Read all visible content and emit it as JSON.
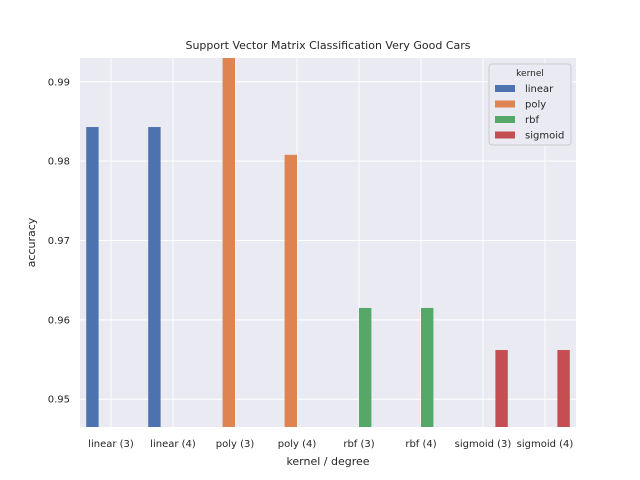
{
  "chart_data": {
    "type": "bar",
    "title": "Support Vector Matrix Classification Very Good Cars",
    "xlabel": "kernel / degree",
    "ylabel": "accuracy",
    "categories": [
      "linear (3)",
      "linear (4)",
      "poly (3)",
      "poly (4)",
      "rbf (3)",
      "rbf (4)",
      "sigmoid (3)",
      "sigmoid (4)"
    ],
    "hue_of_category": [
      "linear",
      "linear",
      "poly",
      "poly",
      "rbf",
      "rbf",
      "sigmoid",
      "sigmoid"
    ],
    "series": [
      {
        "name": "linear",
        "color": "#4c72b0",
        "values": [
          0.9843,
          0.9843,
          null,
          null,
          null,
          null,
          null,
          null
        ]
      },
      {
        "name": "poly",
        "color": "#dd8452",
        "values": [
          null,
          null,
          0.993,
          0.9808,
          null,
          null,
          null,
          null
        ]
      },
      {
        "name": "rbf",
        "color": "#55a868",
        "values": [
          null,
          null,
          null,
          null,
          0.9615,
          0.9615,
          null,
          null
        ]
      },
      {
        "name": "sigmoid",
        "color": "#c44e52",
        "values": [
          null,
          null,
          null,
          null,
          null,
          null,
          0.9562,
          0.9562
        ]
      }
    ],
    "ylim": [
      0.9465,
      0.993
    ],
    "yticks": [
      0.95,
      0.96,
      0.97,
      0.98,
      0.99
    ],
    "ytick_labels": [
      "0.95",
      "0.96",
      "0.97",
      "0.98",
      "0.99"
    ],
    "legend": {
      "title": "kernel",
      "placement": "top-right",
      "entries": [
        "linear",
        "poly",
        "rbf",
        "sigmoid"
      ]
    },
    "grid": true,
    "background": "#eaeaf2"
  }
}
